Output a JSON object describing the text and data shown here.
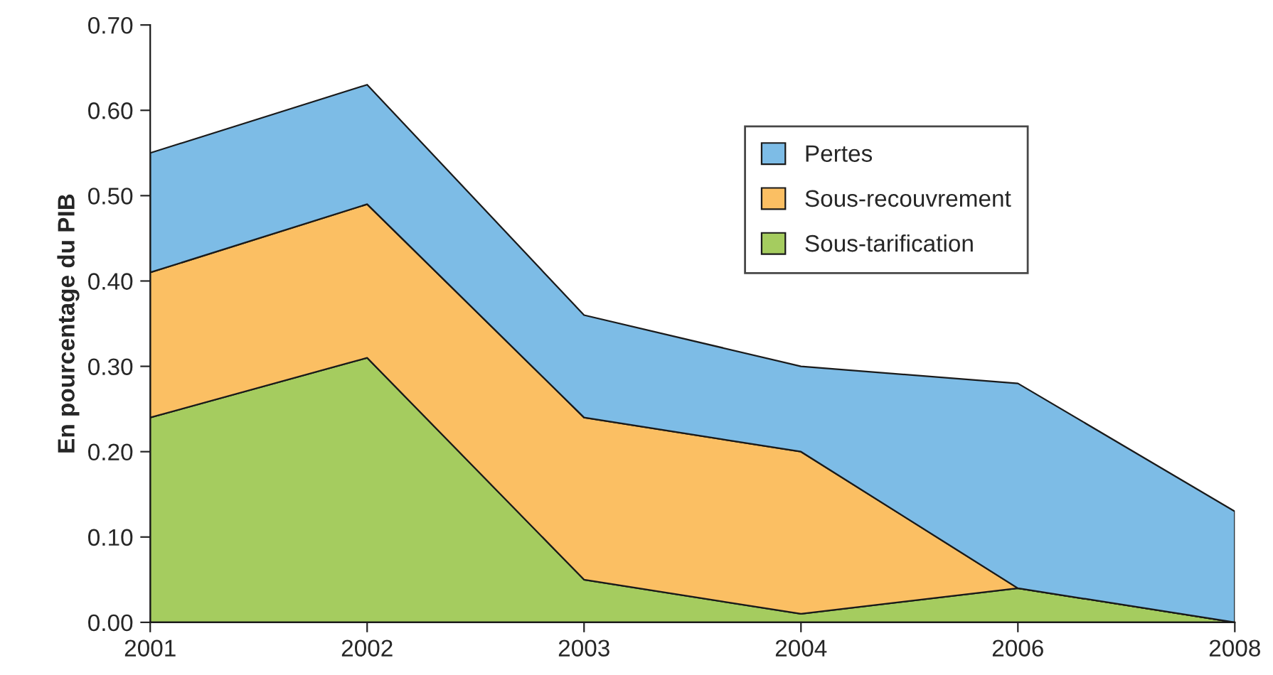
{
  "chart_data": {
    "type": "area",
    "stacked": true,
    "ylabel": "En pourcentage du PIB",
    "categories": [
      "2001",
      "2002",
      "2003",
      "2004",
      "2006",
      "2008"
    ],
    "series": [
      {
        "name": "Sous-tarification",
        "color": "#a5cc5f",
        "values": [
          0.24,
          0.31,
          0.05,
          0.01,
          0.04,
          0.0
        ]
      },
      {
        "name": "Sous-recouvrement",
        "color": "#fbbf63",
        "values": [
          0.17,
          0.18,
          0.19,
          0.19,
          0.0,
          0.0
        ]
      },
      {
        "name": "Pertes",
        "color": "#7dbce6",
        "values": [
          0.14,
          0.14,
          0.12,
          0.1,
          0.24,
          0.13
        ]
      }
    ],
    "ylim": [
      0,
      0.7
    ],
    "yticks": [
      {
        "value": 0,
        "label": "0.00"
      },
      {
        "value": 0.1,
        "label": "0.10"
      },
      {
        "value": 0.2,
        "label": "0.20"
      },
      {
        "value": 0.3,
        "label": "0.30"
      },
      {
        "value": 0.4,
        "label": "0.40"
      },
      {
        "value": 0.5,
        "label": "0.50"
      },
      {
        "value": 0.6,
        "label": "0.60"
      },
      {
        "value": 0.7,
        "label": "0.70"
      }
    ],
    "legend": "top right",
    "grid": false
  }
}
